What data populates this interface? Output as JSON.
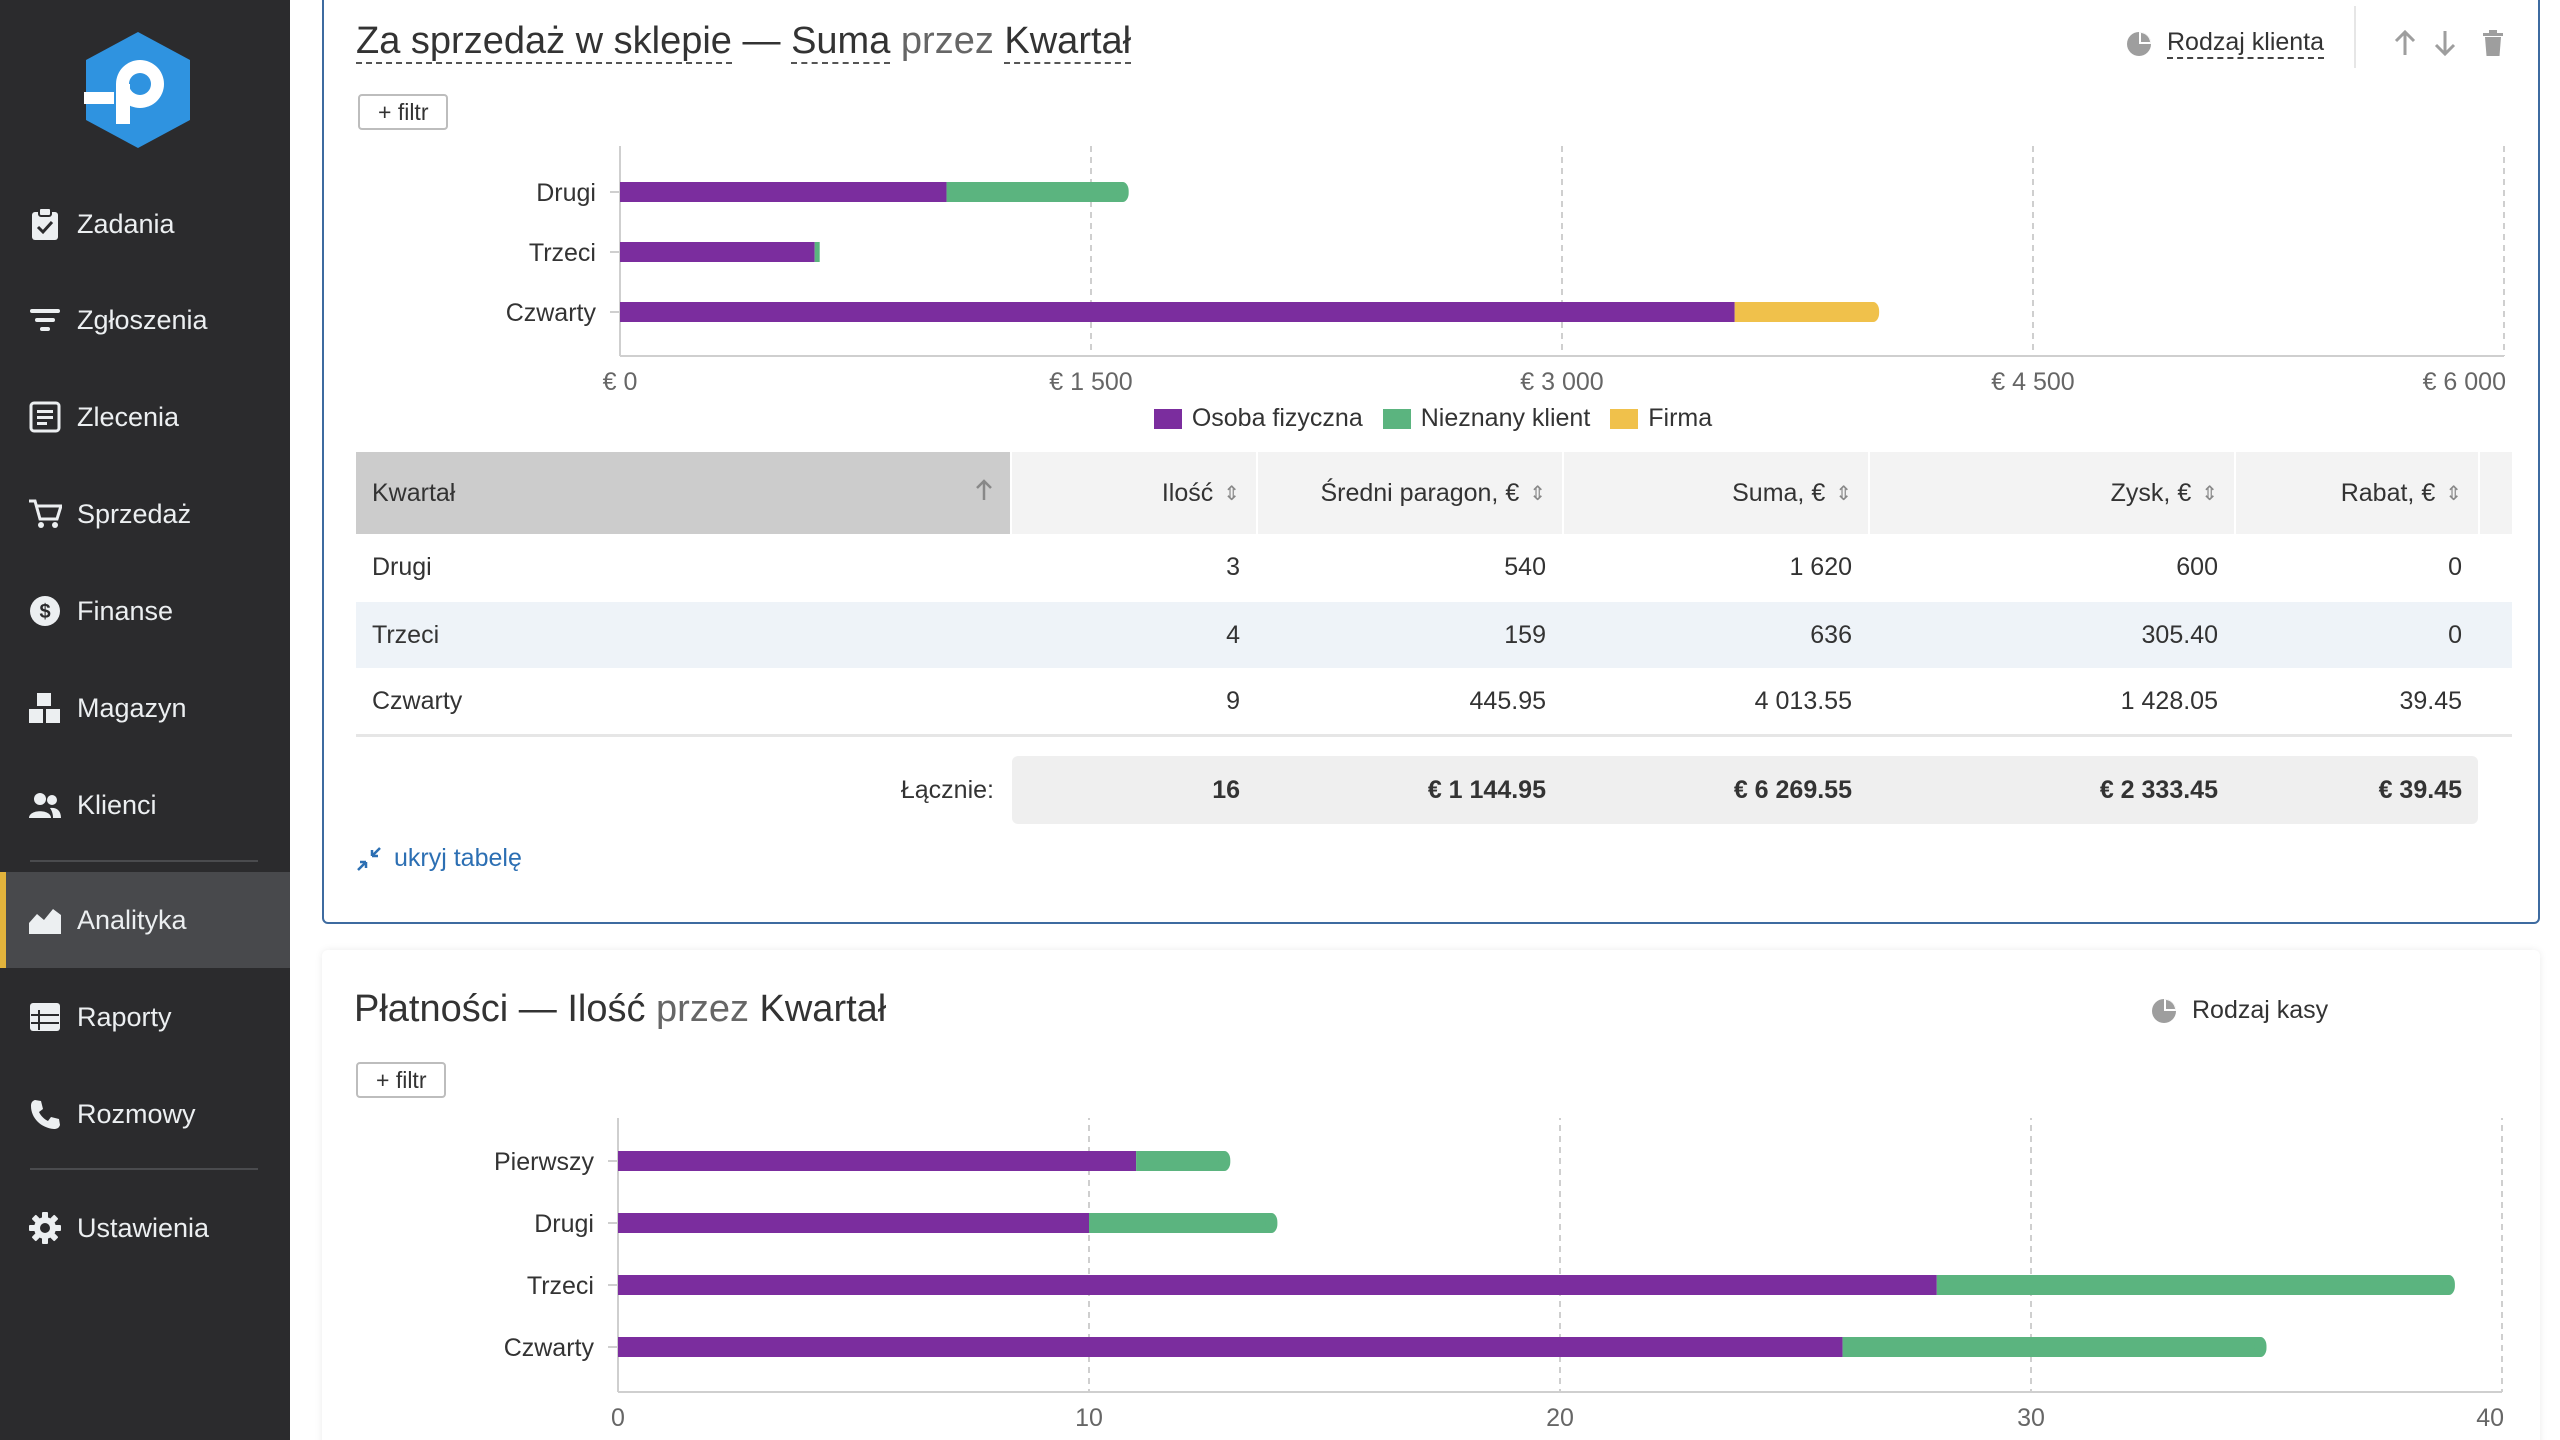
{
  "sidebar": {
    "items": [
      {
        "label": "Zadania",
        "icon": "clipboard-icon"
      },
      {
        "label": "Zgłoszenia",
        "icon": "filter-lines-icon"
      },
      {
        "label": "Zlecenia",
        "icon": "order-list-icon"
      },
      {
        "label": "Sprzedaż",
        "icon": "cart-icon"
      },
      {
        "label": "Finanse",
        "icon": "dollar-circle-icon"
      },
      {
        "label": "Magazyn",
        "icon": "boxes-icon"
      },
      {
        "label": "Klienci",
        "icon": "users-icon"
      },
      {
        "label": "Analityka",
        "icon": "chart-area-icon",
        "active": true
      },
      {
        "label": "Raporty",
        "icon": "table-icon"
      },
      {
        "label": "Rozmowy",
        "icon": "phone-icon"
      },
      {
        "label": "Ustawienia",
        "icon": "gear-icon"
      }
    ]
  },
  "panel1": {
    "title_part1": "Za sprzedaż w sklepie",
    "title_sep": "—",
    "title_metric": "Suma",
    "title_by": "przez",
    "title_dim": "Kwartał",
    "filter_label": "+ filtr",
    "group_by_label": "Rodzaj klienta",
    "hide_table_label": "ukryj tabelę",
    "table": {
      "headers": [
        "Kwartał",
        "Ilość",
        "Średni paragon, €",
        "Suma, €",
        "Zysk, €",
        "Rabat, €"
      ],
      "rows": [
        [
          "Drugi",
          "3",
          "540",
          "1 620",
          "600",
          "0"
        ],
        [
          "Trzeci",
          "4",
          "159",
          "636",
          "305.40",
          "0"
        ],
        [
          "Czwarty",
          "9",
          "445.95",
          "4 013.55",
          "1 428.05",
          "39.45"
        ]
      ],
      "totals_label": "Łącznie:",
      "totals": [
        "16",
        "€ 1 144.95",
        "€ 6 269.55",
        "€ 2 333.45",
        "€ 39.45"
      ]
    }
  },
  "panel2": {
    "title_part1": "Płatności",
    "title_sep": "—",
    "title_metric": "Ilość",
    "title_by": "przez",
    "title_dim": "Kwartał",
    "filter_label": "+ filtr",
    "group_by_label": "Rodzaj kasy"
  },
  "colors": {
    "purple": "#7b2d9e",
    "green": "#5bb47f",
    "yellow": "#f0c14b",
    "accent": "#3e6ba0"
  },
  "chart_data": [
    {
      "type": "bar",
      "orientation": "horizontal",
      "stacked": true,
      "categories": [
        "Drugi",
        "Trzeci",
        "Czwarty"
      ],
      "series": [
        {
          "name": "Osoba fizyczna",
          "color": "#7b2d9e",
          "values": [
            1040,
            620,
            3550
          ]
        },
        {
          "name": "Nieznany klient",
          "color": "#5bb47f",
          "values": [
            580,
            16,
            0
          ]
        },
        {
          "name": "Firma",
          "color": "#f0c14b",
          "values": [
            0,
            0,
            460
          ]
        }
      ],
      "xlim": [
        0,
        6000
      ],
      "xticks": [
        0,
        1500,
        3000,
        4500,
        6000
      ],
      "xtick_labels": [
        "€ 0",
        "€ 1 500",
        "€ 3 000",
        "€ 4 500",
        "€ 6 000"
      ],
      "grid": true,
      "legend": "bottom-center"
    },
    {
      "type": "bar",
      "orientation": "horizontal",
      "stacked": true,
      "categories": [
        "Pierwszy",
        "Drugi",
        "Trzeci",
        "Czwarty"
      ],
      "series": [
        {
          "color": "#7b2d9e",
          "values": [
            11,
            10,
            28,
            26
          ]
        },
        {
          "color": "#5bb47f",
          "values": [
            2,
            4,
            11,
            9
          ]
        }
      ],
      "xlim": [
        0,
        40
      ],
      "xticks": [
        0,
        10,
        20,
        30,
        40
      ],
      "xtick_labels": [
        "0",
        "10",
        "20",
        "30",
        "40"
      ],
      "grid": true
    }
  ]
}
